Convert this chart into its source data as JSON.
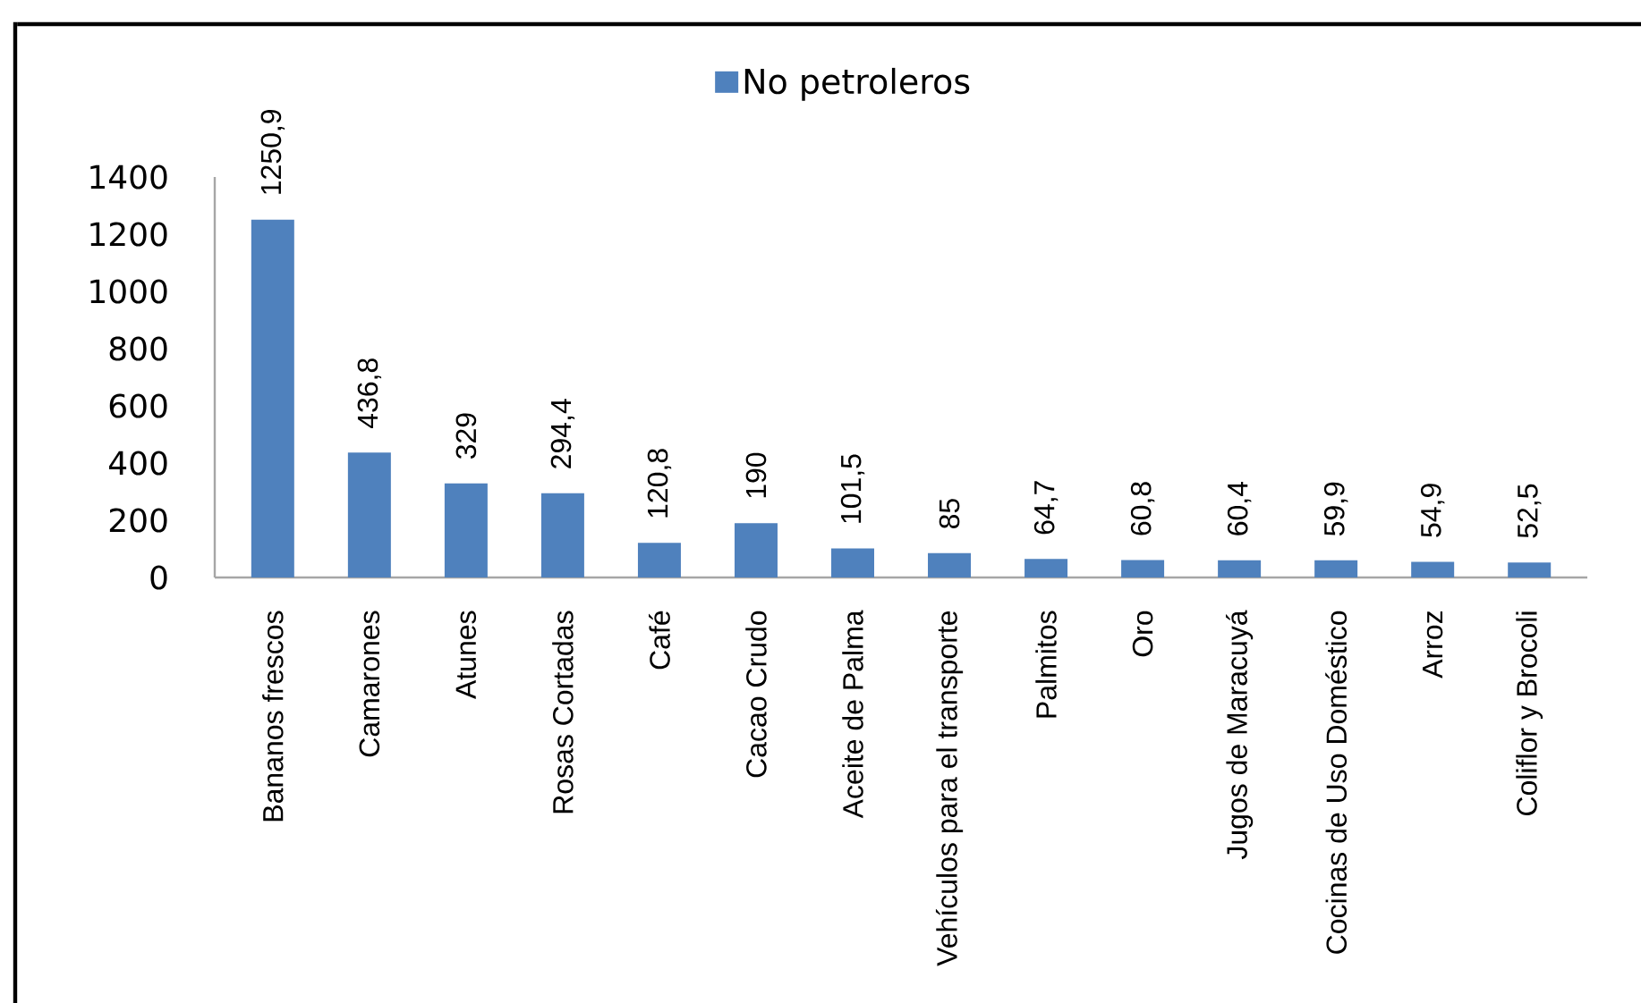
{
  "chart_data": {
    "type": "bar",
    "categories": [
      "Bananos frescos",
      "Camarones",
      "Atunes",
      "Rosas Cortadas",
      "Café",
      "Cacao Crudo",
      "Aceite de Palma",
      "Vehículos para el transporte",
      "Palmitos",
      "Oro",
      "Jugos de Maracuyá",
      "Cocinas de Uso Doméstico",
      "Arroz",
      "Coliflor y Brocoli"
    ],
    "series": [
      {
        "name": "No petroleros",
        "color": "#4f81bd",
        "values": [
          1250.9,
          436.8,
          329,
          294.4,
          120.8,
          190,
          101.5,
          85,
          64.7,
          60.8,
          60.4,
          59.9,
          54.9,
          52.5
        ],
        "value_labels": [
          "1250,9",
          "436,8",
          "329",
          "294,4",
          "120,8",
          "190",
          "101,5",
          "85",
          "64,7",
          "60,8",
          "60,4",
          "59,9",
          "54,9",
          "52,5"
        ]
      }
    ],
    "ylim": [
      0,
      1400
    ],
    "yticks": [
      0,
      200,
      400,
      600,
      800,
      1000,
      1200,
      1400
    ],
    "legend": "top"
  }
}
